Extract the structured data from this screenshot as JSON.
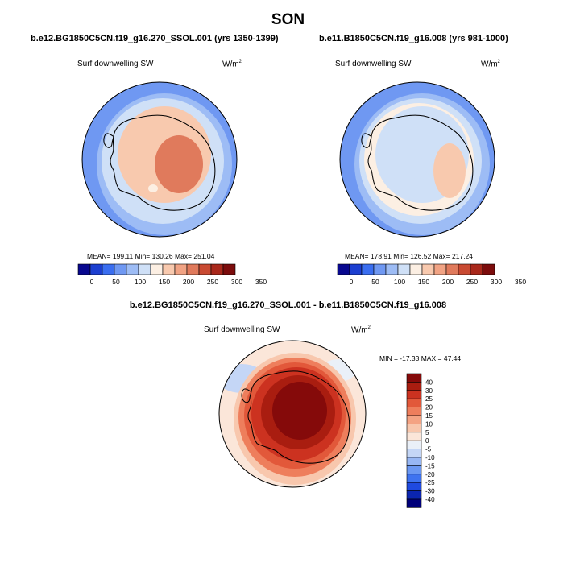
{
  "season": "SON",
  "colors": {
    "abs_scale": [
      "#08088f",
      "#1c3fd0",
      "#3a6ef0",
      "#6f98f2",
      "#9dbcf5",
      "#cfe0f7",
      "#fcefe3",
      "#f8c9ae",
      "#f1a384",
      "#e07a5c",
      "#c94a32",
      "#a9281b",
      "#7c0c0c"
    ],
    "diff_scale": [
      "#00007a",
      "#0b25b0",
      "#1f4ae0",
      "#3e73f0",
      "#6b98f2",
      "#97b7f4",
      "#c4d6f6",
      "#eaf0f8",
      "#fbe6d9",
      "#f8c7ad",
      "#f4a383",
      "#ee7e5c",
      "#e2583a",
      "#cc3220",
      "#a91d10",
      "#850a0a"
    ],
    "coast": "#000000"
  },
  "panels": [
    {
      "id": "left",
      "case_title": "b.e12.BG1850C5CN.f19_g16.270_SSOL.001 (yrs 1350-1399)",
      "variable": "Surf downwelling SW",
      "units_base": "W/m",
      "units_exp": "2",
      "stats": {
        "mean": "199.11",
        "min": "130.26",
        "max": "251.04"
      },
      "stats_text": "MEAN= 199.11  Min= 130.26  Max= 251.04",
      "field": {
        "ocean_outer": 110,
        "sea_ice_ring": 165,
        "continent": 215,
        "interior_max": 251
      }
    },
    {
      "id": "right",
      "case_title": "b.e11.B1850C5CN.f19_g16.008 (yrs 981-1000)",
      "variable": "Surf downwelling SW",
      "units_base": "W/m",
      "units_exp": "2",
      "stats": {
        "mean": "178.91",
        "min": "126.52",
        "max": "217.24"
      },
      "stats_text": "MEAN= 178.91  Min= 126.52  Max= 217.24",
      "field": {
        "ocean_outer": 110,
        "sea_ice_ring": 190,
        "continent": 170,
        "interior_max": 217
      }
    }
  ],
  "abs_ticks": [
    "0",
    "50",
    "100",
    "150",
    "200",
    "250",
    "300",
    "350"
  ],
  "diff_panel": {
    "title": "b.e12.BG1850C5CN.f19_g16.270_SSOL.001 - b.e11.B1850C5CN.f19_g16.008",
    "variable": "Surf downwelling SW",
    "units_base": "W/m",
    "units_exp": "2",
    "stats": {
      "min": "-17.33",
      "max": "47.44"
    },
    "stats_text": "MIN = -17.33 MAX =  47.44",
    "ticks": [
      "40",
      "30",
      "25",
      "20",
      "15",
      "10",
      "5",
      "0",
      "-5",
      "-10",
      "-15",
      "-20",
      "-25",
      "-30",
      "-40"
    ]
  }
}
